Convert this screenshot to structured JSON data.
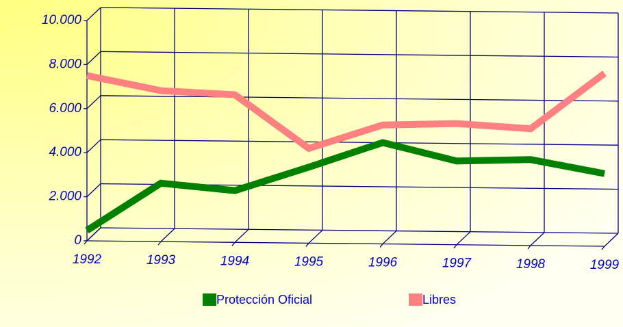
{
  "chart_data": {
    "type": "line",
    "categories": [
      "1992",
      "1993",
      "1994",
      "1995",
      "1996",
      "1997",
      "1998",
      "1999"
    ],
    "series": [
      {
        "name": "Protección Oficial",
        "color": "#008000",
        "values": [
          470,
          2650,
          2350,
          3450,
          4600,
          3800,
          3900,
          3300
        ]
      },
      {
        "name": "Libres",
        "color": "#ff8080",
        "values": [
          7500,
          6850,
          6700,
          4300,
          5400,
          5500,
          5300,
          7850
        ]
      }
    ],
    "ylim": [
      0,
      10000
    ],
    "yticks": [
      0,
      {
        "value": 2000,
        "label": "2.000"
      },
      {
        "value": 4000,
        "label": "4.000"
      },
      {
        "value": 6000,
        "label": "6.000"
      },
      {
        "value": 8000,
        "label": "8.000"
      },
      {
        "value": 10000,
        "label": "10.000"
      }
    ],
    "grid": true
  }
}
